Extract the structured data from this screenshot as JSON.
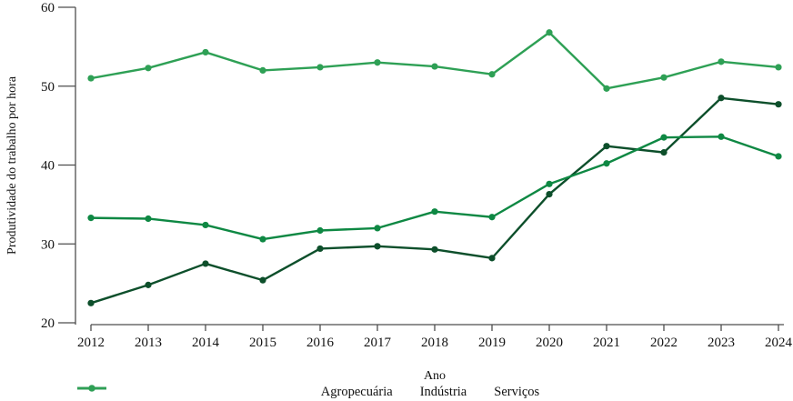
{
  "figure": {
    "background": "#ffffff",
    "axis_color": "#4d4d4d",
    "text_color": "#111111"
  },
  "chart_data": {
    "type": "line",
    "title": "",
    "xlabel": "Ano",
    "ylabel": "Produtividade do trabalho por hora",
    "x": [
      2012,
      2013,
      2014,
      2015,
      2016,
      2017,
      2018,
      2019,
      2020,
      2021,
      2022,
      2023,
      2024
    ],
    "ylim": [
      20,
      60
    ],
    "yticks": [
      20,
      30,
      40,
      50,
      60
    ],
    "grid": false,
    "legend_position": "bottom",
    "marker": "circle",
    "series": [
      {
        "name": "Agropecuária",
        "color": "#0d4f2b",
        "values": [
          22.5,
          24.8,
          27.5,
          25.4,
          29.4,
          29.7,
          29.3,
          28.2,
          36.3,
          42.4,
          41.6,
          48.5,
          47.7
        ]
      },
      {
        "name": "Indústria",
        "color": "#0e8843",
        "values": [
          33.3,
          33.2,
          32.4,
          30.6,
          31.7,
          32.0,
          34.1,
          33.4,
          37.6,
          40.2,
          43.5,
          43.6,
          41.1
        ]
      },
      {
        "name": "Serviços",
        "color": "#2ea055",
        "values": [
          51.0,
          52.3,
          54.3,
          52.0,
          52.4,
          53.0,
          52.5,
          51.5,
          56.8,
          49.7,
          51.1,
          53.1,
          52.4
        ]
      }
    ]
  }
}
